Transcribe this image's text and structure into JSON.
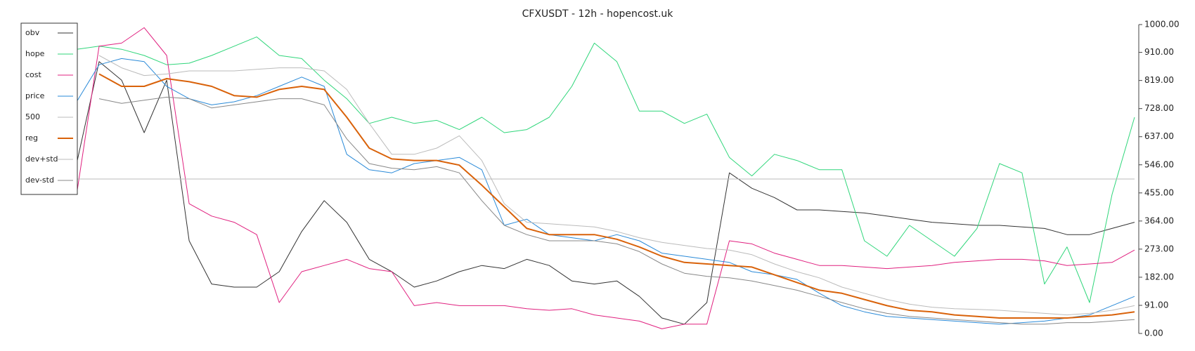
{
  "chart_data": {
    "type": "line",
    "title": "CFXUSDT - 12h - hopencost.uk",
    "ylim": [
      0,
      1000
    ],
    "yticks": [
      {
        "value": 0,
        "label": "0.00"
      },
      {
        "value": 91,
        "label": "91.00"
      },
      {
        "value": 182,
        "label": "182.00"
      },
      {
        "value": 273,
        "label": "273.00"
      },
      {
        "value": 364,
        "label": "364.00"
      },
      {
        "value": 455,
        "label": "455.00"
      },
      {
        "value": 546,
        "label": "546.00"
      },
      {
        "value": 637,
        "label": "637.00"
      },
      {
        "value": 728,
        "label": "728.00"
      },
      {
        "value": 819,
        "label": "819.00"
      },
      {
        "value": 910,
        "label": "910.00"
      },
      {
        "value": 1000,
        "label": "1000.00"
      }
    ],
    "grid": false,
    "legend": "upper left",
    "series": [
      {
        "name": "obv",
        "color": "#333333",
        "width": 1,
        "values": [
          550,
          880,
          820,
          650,
          820,
          300,
          160,
          150,
          150,
          200,
          330,
          430,
          360,
          240,
          200,
          150,
          170,
          200,
          220,
          210,
          240,
          220,
          170,
          160,
          170,
          120,
          50,
          30,
          100,
          520,
          470,
          440,
          400,
          400,
          395,
          390,
          380,
          370,
          360,
          355,
          350,
          350,
          345,
          340,
          320,
          320,
          340,
          360
        ]
      },
      {
        "name": "hope",
        "color": "#2fd67a",
        "width": 1,
        "values": [
          920,
          930,
          920,
          900,
          870,
          875,
          900,
          930,
          960,
          900,
          890,
          820,
          760,
          680,
          700,
          680,
          690,
          660,
          700,
          650,
          660,
          700,
          800,
          940,
          880,
          720,
          720,
          680,
          710,
          570,
          510,
          580,
          560,
          530,
          530,
          300,
          250,
          350,
          300,
          250,
          340,
          550,
          520,
          160,
          280,
          100,
          450,
          700
        ]
      },
      {
        "name": "cost",
        "color": "#e0207f",
        "width": 1,
        "values": [
          450,
          930,
          940,
          990,
          900,
          420,
          380,
          360,
          320,
          100,
          200,
          220,
          240,
          210,
          200,
          90,
          100,
          90,
          90,
          90,
          80,
          75,
          80,
          60,
          50,
          40,
          15,
          30,
          30,
          300,
          290,
          260,
          240,
          220,
          220,
          215,
          210,
          215,
          220,
          230,
          235,
          240,
          240,
          235,
          220,
          225,
          230,
          270
        ]
      },
      {
        "name": "price",
        "color": "#2a8ad8",
        "width": 1,
        "values": [
          750,
          870,
          890,
          880,
          800,
          760,
          740,
          750,
          770,
          800,
          830,
          800,
          580,
          530,
          520,
          550,
          560,
          570,
          530,
          350,
          370,
          320,
          310,
          300,
          320,
          300,
          260,
          250,
          240,
          230,
          200,
          190,
          175,
          130,
          90,
          70,
          55,
          50,
          45,
          40,
          35,
          30,
          35,
          40,
          50,
          60,
          90,
          120
        ]
      },
      {
        "name": "500",
        "color": "#bbbbbb",
        "width": 1,
        "values": [
          500,
          500,
          500,
          500,
          500,
          500,
          500,
          500,
          500,
          500,
          500,
          500,
          500,
          500,
          500,
          500,
          500,
          500,
          500,
          500,
          500,
          500,
          500,
          500,
          500,
          500,
          500,
          500,
          500,
          500,
          500,
          500,
          500,
          500,
          500,
          500,
          500,
          500,
          500,
          500,
          500,
          500,
          500,
          500,
          500,
          500,
          500,
          500
        ]
      },
      {
        "name": "reg",
        "color": "#d9620a",
        "width": 2,
        "values": [
          null,
          840,
          800,
          800,
          825,
          815,
          800,
          770,
          765,
          790,
          800,
          790,
          700,
          600,
          565,
          560,
          560,
          545,
          480,
          410,
          340,
          320,
          320,
          320,
          305,
          280,
          250,
          230,
          225,
          220,
          215,
          190,
          165,
          140,
          130,
          110,
          90,
          75,
          70,
          60,
          55,
          50,
          50,
          50,
          50,
          55,
          60,
          70
        ]
      },
      {
        "name": "dev+std",
        "color": "#bbbbbb",
        "width": 1,
        "values": [
          null,
          900,
          860,
          835,
          840,
          850,
          850,
          850,
          855,
          860,
          860,
          850,
          790,
          680,
          580,
          580,
          600,
          640,
          560,
          420,
          360,
          355,
          350,
          345,
          330,
          310,
          295,
          285,
          275,
          270,
          255,
          225,
          200,
          180,
          150,
          130,
          110,
          95,
          85,
          80,
          78,
          75,
          70,
          65,
          60,
          65,
          75,
          90
        ]
      },
      {
        "name": "dev-std",
        "color": "#888888",
        "width": 1,
        "values": [
          null,
          760,
          745,
          755,
          765,
          760,
          730,
          740,
          750,
          760,
          760,
          740,
          630,
          550,
          535,
          530,
          540,
          520,
          430,
          350,
          320,
          300,
          300,
          300,
          290,
          265,
          225,
          195,
          185,
          180,
          170,
          155,
          140,
          120,
          100,
          80,
          65,
          55,
          50,
          45,
          40,
          35,
          30,
          30,
          35,
          35,
          40,
          45
        ]
      }
    ]
  }
}
